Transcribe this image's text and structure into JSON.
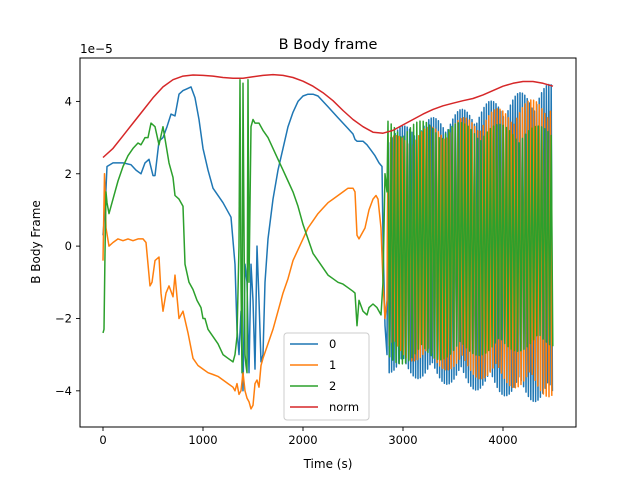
{
  "chart_data": {
    "type": "line",
    "title": "B Body frame",
    "xlabel": "Time (s)",
    "ylabel": "B Body Frame",
    "y_offset_label": "1e−5",
    "xlim": [
      -230,
      4730
    ],
    "ylim": [
      -5.0,
      5.2
    ],
    "xticks": [
      0,
      1000,
      2000,
      3000,
      4000
    ],
    "xtick_labels": [
      "0",
      "1000",
      "2000",
      "3000",
      "4000"
    ],
    "yticks": [
      -4,
      -2,
      0,
      2,
      4
    ],
    "ytick_labels": [
      "−4",
      "−2",
      "0",
      "2",
      "4"
    ],
    "grid": false,
    "legend_position": "lower-center",
    "series": [
      {
        "name": "0",
        "color": "#1f77b4",
        "points": [
          [
            0,
            0.3
          ],
          [
            20,
            1.0
          ],
          [
            40,
            2.2
          ],
          [
            100,
            2.3
          ],
          [
            200,
            2.3
          ],
          [
            280,
            2.25
          ],
          [
            330,
            2.1
          ],
          [
            380,
            2.0
          ],
          [
            420,
            2.3
          ],
          [
            460,
            2.4
          ],
          [
            500,
            1.95
          ],
          [
            520,
            1.95
          ],
          [
            560,
            2.9
          ],
          [
            600,
            3.0
          ],
          [
            640,
            3.3
          ],
          [
            680,
            3.65
          ],
          [
            720,
            3.6
          ],
          [
            760,
            4.2
          ],
          [
            800,
            4.3
          ],
          [
            840,
            4.35
          ],
          [
            880,
            4.4
          ],
          [
            920,
            4.1
          ],
          [
            960,
            3.5
          ],
          [
            1000,
            2.7
          ],
          [
            1050,
            2.1
          ],
          [
            1100,
            1.6
          ],
          [
            1200,
            1.2
          ],
          [
            1280,
            0.8
          ],
          [
            1320,
            -0.5
          ],
          [
            1340,
            -2.3
          ],
          [
            1360,
            -3.0
          ],
          [
            1380,
            -1.8
          ],
          [
            1400,
            -4.0
          ],
          [
            1420,
            -0.5
          ],
          [
            1440,
            -1.0
          ],
          [
            1460,
            -3.5
          ],
          [
            1480,
            -0.5
          ],
          [
            1500,
            -1.5
          ],
          [
            1520,
            -3.4
          ],
          [
            1540,
            0.0
          ],
          [
            1560,
            -1.5
          ],
          [
            1580,
            -3.2
          ],
          [
            1600,
            -3.0
          ],
          [
            1620,
            -1.0
          ],
          [
            1650,
            0.2
          ],
          [
            1700,
            1.3
          ],
          [
            1750,
            2.1
          ],
          [
            1800,
            2.7
          ],
          [
            1850,
            3.3
          ],
          [
            1900,
            3.7
          ],
          [
            1950,
            4.0
          ],
          [
            2000,
            4.15
          ],
          [
            2050,
            4.2
          ],
          [
            2100,
            4.2
          ],
          [
            2150,
            4.15
          ],
          [
            2200,
            4.0
          ],
          [
            2250,
            3.85
          ],
          [
            2300,
            3.7
          ],
          [
            2350,
            3.55
          ],
          [
            2400,
            3.4
          ],
          [
            2450,
            3.25
          ],
          [
            2500,
            3.1
          ],
          [
            2520,
            2.95
          ],
          [
            2540,
            2.9
          ],
          [
            2560,
            2.9
          ],
          [
            2600,
            2.9
          ],
          [
            2640,
            2.8
          ],
          [
            2680,
            2.65
          ],
          [
            2720,
            2.5
          ],
          [
            2760,
            2.3
          ],
          [
            2790,
            2.2
          ],
          [
            2800,
            0.2
          ],
          [
            2820,
            -2.2
          ],
          [
            2840,
            -3.0
          ]
        ],
        "band": {
          "x_from": 2850,
          "x_to": 4500,
          "lower": [
            -3.5,
            -4.4
          ],
          "upper": [
            3.2,
            4.5
          ]
        }
      },
      {
        "name": "1",
        "color": "#ff7f0e",
        "points": [
          [
            0,
            -0.4
          ],
          [
            15,
            2.0
          ],
          [
            30,
            0.5
          ],
          [
            60,
            0.0
          ],
          [
            100,
            0.1
          ],
          [
            150,
            0.2
          ],
          [
            200,
            0.15
          ],
          [
            250,
            0.2
          ],
          [
            300,
            0.15
          ],
          [
            350,
            0.2
          ],
          [
            400,
            0.2
          ],
          [
            430,
            0.1
          ],
          [
            470,
            -1.1
          ],
          [
            490,
            -1.0
          ],
          [
            520,
            -0.4
          ],
          [
            560,
            -0.3
          ],
          [
            580,
            -1.3
          ],
          [
            600,
            -1.8
          ],
          [
            630,
            -1.3
          ],
          [
            660,
            -1.1
          ],
          [
            700,
            -1.4
          ],
          [
            720,
            -0.8
          ],
          [
            760,
            -2.0
          ],
          [
            800,
            -1.8
          ],
          [
            850,
            -2.4
          ],
          [
            900,
            -3.1
          ],
          [
            950,
            -3.3
          ],
          [
            1000,
            -3.4
          ],
          [
            1050,
            -3.5
          ],
          [
            1100,
            -3.55
          ],
          [
            1150,
            -3.6
          ],
          [
            1200,
            -3.7
          ],
          [
            1250,
            -3.8
          ],
          [
            1300,
            -3.9
          ],
          [
            1320,
            -4.0
          ],
          [
            1340,
            -3.8
          ],
          [
            1360,
            -4.1
          ],
          [
            1380,
            -4.0
          ],
          [
            1400,
            -3.5
          ],
          [
            1420,
            -4.0
          ],
          [
            1440,
            -4.2
          ],
          [
            1460,
            -4.3
          ],
          [
            1480,
            -4.5
          ],
          [
            1500,
            -4.4
          ],
          [
            1520,
            -3.8
          ],
          [
            1540,
            -3.7
          ],
          [
            1560,
            -3.9
          ],
          [
            1580,
            -3.3
          ],
          [
            1600,
            -3.1
          ],
          [
            1650,
            -2.7
          ],
          [
            1700,
            -2.3
          ],
          [
            1750,
            -1.8
          ],
          [
            1800,
            -1.3
          ],
          [
            1850,
            -0.9
          ],
          [
            1900,
            -0.4
          ],
          [
            1950,
            -0.1
          ],
          [
            2000,
            0.2
          ],
          [
            2050,
            0.5
          ],
          [
            2100,
            0.7
          ],
          [
            2150,
            0.9
          ],
          [
            2200,
            1.05
          ],
          [
            2250,
            1.2
          ],
          [
            2300,
            1.3
          ],
          [
            2350,
            1.4
          ],
          [
            2400,
            1.5
          ],
          [
            2450,
            1.6
          ],
          [
            2500,
            1.6
          ],
          [
            2520,
            1.5
          ],
          [
            2540,
            0.3
          ],
          [
            2560,
            0.2
          ],
          [
            2580,
            0.3
          ],
          [
            2620,
            0.5
          ],
          [
            2660,
            1.0
          ],
          [
            2700,
            1.3
          ],
          [
            2730,
            1.4
          ],
          [
            2750,
            1.3
          ],
          [
            2780,
            0.5
          ],
          [
            2800,
            -1.0
          ],
          [
            2820,
            -2.0
          ],
          [
            2840,
            -1.5
          ]
        ],
        "band": {
          "x_from": 2850,
          "x_to": 4500,
          "lower": [
            -3.0,
            -4.2
          ],
          "upper": [
            3.0,
            4.2
          ]
        }
      },
      {
        "name": "2",
        "color": "#2ca02c",
        "points": [
          [
            0,
            -2.4
          ],
          [
            10,
            -2.3
          ],
          [
            20,
            -0.2
          ],
          [
            30,
            1.5
          ],
          [
            40,
            1.2
          ],
          [
            60,
            0.9
          ],
          [
            100,
            1.3
          ],
          [
            150,
            1.8
          ],
          [
            200,
            2.2
          ],
          [
            250,
            2.5
          ],
          [
            300,
            2.7
          ],
          [
            350,
            2.85
          ],
          [
            380,
            2.8
          ],
          [
            400,
            2.9
          ],
          [
            420,
            3.0
          ],
          [
            450,
            3.0
          ],
          [
            480,
            3.4
          ],
          [
            520,
            3.3
          ],
          [
            560,
            2.8
          ],
          [
            600,
            3.3
          ],
          [
            630,
            2.8
          ],
          [
            660,
            2.3
          ],
          [
            700,
            1.9
          ],
          [
            720,
            1.4
          ],
          [
            760,
            1.3
          ],
          [
            800,
            1.1
          ],
          [
            820,
            -0.5
          ],
          [
            860,
            -1.0
          ],
          [
            900,
            -1.2
          ],
          [
            940,
            -1.5
          ],
          [
            980,
            -1.7
          ],
          [
            1000,
            -2.0
          ],
          [
            1020,
            -2.0
          ],
          [
            1050,
            -2.3
          ],
          [
            1100,
            -2.5
          ],
          [
            1150,
            -2.7
          ],
          [
            1200,
            -3.0
          ],
          [
            1250,
            -3.1
          ],
          [
            1300,
            -3.2
          ],
          [
            1320,
            -3.0
          ],
          [
            1340,
            -2.5
          ],
          [
            1360,
            0.0
          ],
          [
            1370,
            4.6
          ],
          [
            1380,
            -1.0
          ],
          [
            1390,
            -3.5
          ],
          [
            1400,
            4.5
          ],
          [
            1410,
            0.5
          ],
          [
            1420,
            -3.0
          ],
          [
            1430,
            -3.3
          ],
          [
            1440,
            -3.5
          ],
          [
            1450,
            4.6
          ],
          [
            1460,
            -1.0
          ],
          [
            1480,
            3.3
          ],
          [
            1500,
            3.5
          ],
          [
            1520,
            3.4
          ],
          [
            1560,
            3.4
          ],
          [
            1600,
            3.2
          ],
          [
            1650,
            3.0
          ],
          [
            1700,
            2.7
          ],
          [
            1750,
            2.4
          ],
          [
            1800,
            2.1
          ],
          [
            1850,
            1.8
          ],
          [
            1900,
            1.5
          ],
          [
            1950,
            1.1
          ],
          [
            2000,
            0.6
          ],
          [
            2050,
            0.2
          ],
          [
            2100,
            -0.2
          ],
          [
            2150,
            -0.4
          ],
          [
            2200,
            -0.6
          ],
          [
            2250,
            -0.8
          ],
          [
            2300,
            -0.9
          ],
          [
            2350,
            -1.0
          ],
          [
            2400,
            -1.05
          ],
          [
            2450,
            -1.15
          ],
          [
            2500,
            -1.25
          ],
          [
            2520,
            -1.3
          ],
          [
            2540,
            -2.2
          ],
          [
            2560,
            -1.5
          ],
          [
            2600,
            -1.8
          ],
          [
            2640,
            -1.9
          ],
          [
            2660,
            -1.7
          ],
          [
            2700,
            -1.6
          ],
          [
            2740,
            -1.7
          ],
          [
            2780,
            -1.9
          ],
          [
            2800,
            -1.0
          ],
          [
            2820,
            2.0
          ],
          [
            2840,
            1.5
          ]
        ],
        "band": {
          "x_from": 2850,
          "x_to": 4500,
          "lower": [
            -3.3,
            -2.8
          ],
          "upper": [
            3.5,
            3.3
          ]
        }
      },
      {
        "name": "norm",
        "color": "#d62728",
        "points": [
          [
            0,
            2.45
          ],
          [
            100,
            2.7
          ],
          [
            200,
            3.05
          ],
          [
            300,
            3.4
          ],
          [
            400,
            3.75
          ],
          [
            500,
            4.1
          ],
          [
            600,
            4.4
          ],
          [
            700,
            4.6
          ],
          [
            800,
            4.7
          ],
          [
            900,
            4.73
          ],
          [
            1000,
            4.72
          ],
          [
            1100,
            4.7
          ],
          [
            1200,
            4.66
          ],
          [
            1300,
            4.64
          ],
          [
            1400,
            4.64
          ],
          [
            1500,
            4.68
          ],
          [
            1600,
            4.72
          ],
          [
            1700,
            4.74
          ],
          [
            1800,
            4.72
          ],
          [
            1900,
            4.66
          ],
          [
            2000,
            4.56
          ],
          [
            2100,
            4.42
          ],
          [
            2200,
            4.24
          ],
          [
            2300,
            4.02
          ],
          [
            2400,
            3.75
          ],
          [
            2500,
            3.5
          ],
          [
            2600,
            3.3
          ],
          [
            2700,
            3.15
          ],
          [
            2800,
            3.12
          ],
          [
            2900,
            3.2
          ],
          [
            3000,
            3.35
          ],
          [
            3100,
            3.5
          ],
          [
            3200,
            3.65
          ],
          [
            3300,
            3.78
          ],
          [
            3400,
            3.88
          ],
          [
            3500,
            3.95
          ],
          [
            3600,
            4.02
          ],
          [
            3700,
            4.08
          ],
          [
            3800,
            4.18
          ],
          [
            3900,
            4.3
          ],
          [
            4000,
            4.42
          ],
          [
            4100,
            4.5
          ],
          [
            4200,
            4.55
          ],
          [
            4300,
            4.55
          ],
          [
            4400,
            4.5
          ],
          [
            4500,
            4.42
          ]
        ]
      }
    ]
  }
}
